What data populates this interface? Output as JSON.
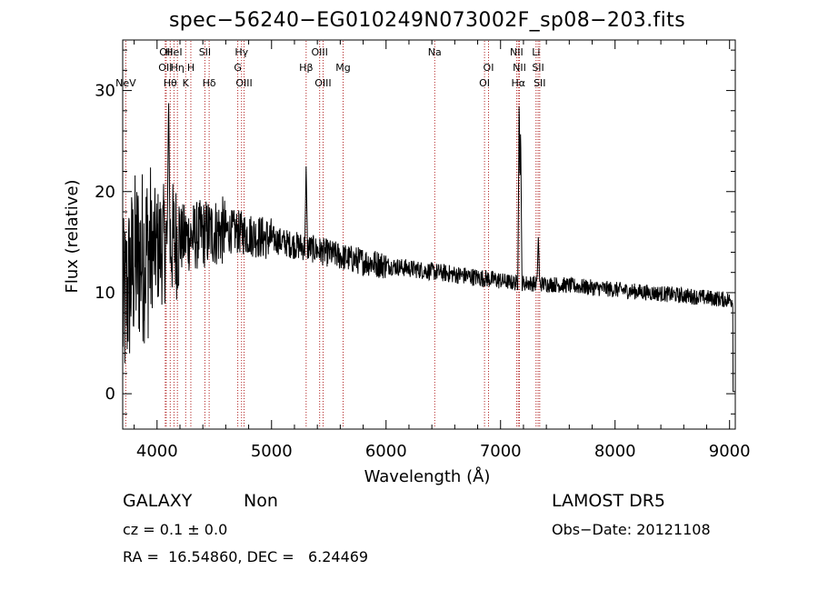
{
  "title": "spec−56240−EG010249N073002F_sp08−203.fits",
  "footer": {
    "class_label": "GALAXY",
    "subclass_label": "Non",
    "cz_text": "cz = 0.1 ± 0.0",
    "radec_text": "RA =  16.54860, DEC =   6.24469",
    "survey": "LAMOST DR5",
    "obs_date": "Obs−Date: 20121108"
  },
  "chart_data": {
    "type": "line",
    "title": "spec−56240−EG010249N073002F_sp08−203.fits",
    "xlabel": "Wavelength (Å)",
    "ylabel": "Flux (relative)",
    "xlim": [
      3700,
      9050
    ],
    "ylim": [
      -3.5,
      35
    ],
    "xticks": [
      4000,
      5000,
      6000,
      7000,
      8000,
      9000
    ],
    "yticks": [
      0,
      10,
      20,
      30
    ],
    "grid": false,
    "line_color": "#000000",
    "marker_color": "#b22222",
    "spectrum_anchor_points": [
      [
        3700,
        8
      ],
      [
        3800,
        13
      ],
      [
        3900,
        14
      ],
      [
        4000,
        14.5
      ],
      [
        4100,
        15
      ],
      [
        4200,
        15.3
      ],
      [
        4300,
        15.5
      ],
      [
        4400,
        15.8
      ],
      [
        4500,
        16
      ],
      [
        4600,
        16.1
      ],
      [
        4700,
        16
      ],
      [
        4800,
        15.8
      ],
      [
        4900,
        15.5
      ],
      [
        5000,
        15.3
      ],
      [
        5100,
        15
      ],
      [
        5200,
        14.7
      ],
      [
        5300,
        14.5
      ],
      [
        5400,
        14.2
      ],
      [
        5500,
        13.9
      ],
      [
        5600,
        13.6
      ],
      [
        5700,
        13.3
      ],
      [
        5800,
        13.1
      ],
      [
        5900,
        12.9
      ],
      [
        6000,
        12.7
      ],
      [
        6200,
        12.4
      ],
      [
        6400,
        12.1
      ],
      [
        6600,
        11.8
      ],
      [
        6800,
        11.5
      ],
      [
        7000,
        11.2
      ],
      [
        7100,
        11
      ],
      [
        7300,
        10.9
      ],
      [
        7500,
        10.8
      ],
      [
        7700,
        10.6
      ],
      [
        7900,
        10.4
      ],
      [
        8100,
        10.2
      ],
      [
        8300,
        10
      ],
      [
        8500,
        9.8
      ],
      [
        8700,
        9.6
      ],
      [
        8900,
        9.4
      ],
      [
        9050,
        9.2
      ]
    ],
    "emission_peaks": [
      {
        "x": 4101,
        "y": 30
      },
      {
        "x": 5302,
        "y": 22.5
      },
      {
        "x": 7163,
        "y": 30
      },
      {
        "x": 7175,
        "y": 27
      },
      {
        "x": 7330,
        "y": 15.5
      }
    ],
    "lines": [
      {
        "label": "NeV",
        "x": 3727,
        "row": 2
      },
      {
        "label": "OII",
        "x": 4080,
        "row": 0
      },
      {
        "label": "OII",
        "x": 4072,
        "row": 1
      },
      {
        "label": "Hθ",
        "x": 4115,
        "row": 2
      },
      {
        "label": "HeI",
        "x": 4148,
        "row": 0
      },
      {
        "label": "Hη",
        "x": 4178,
        "row": 1
      },
      {
        "label": "K",
        "x": 4250,
        "row": 2
      },
      {
        "label": "H",
        "x": 4295,
        "row": 1
      },
      {
        "label": "SII",
        "x": 4418,
        "row": 0
      },
      {
        "label": "Hδ",
        "x": 4455,
        "row": 2
      },
      {
        "label": "Hγ",
        "x": 4738,
        "row": 0
      },
      {
        "label": "G",
        "x": 4705,
        "row": 1
      },
      {
        "label": "OIII",
        "x": 4760,
        "row": 2
      },
      {
        "label": "Hβ",
        "x": 5302,
        "row": 1
      },
      {
        "label": "OIII",
        "x": 5420,
        "row": 0
      },
      {
        "label": "OIII",
        "x": 5450,
        "row": 2
      },
      {
        "label": "Mg",
        "x": 5625,
        "row": 1
      },
      {
        "label": "Na",
        "x": 6425,
        "row": 0
      },
      {
        "label": "OI",
        "x": 6895,
        "row": 1
      },
      {
        "label": "OI",
        "x": 6860,
        "row": 2
      },
      {
        "label": "NII",
        "x": 7140,
        "row": 0
      },
      {
        "label": "NII",
        "x": 7165,
        "row": 1
      },
      {
        "label": "Hα",
        "x": 7155,
        "row": 2
      },
      {
        "label": "Li",
        "x": 7310,
        "row": 0
      },
      {
        "label": "SII",
        "x": 7328,
        "row": 1
      },
      {
        "label": "SII",
        "x": 7342,
        "row": 2
      }
    ]
  }
}
